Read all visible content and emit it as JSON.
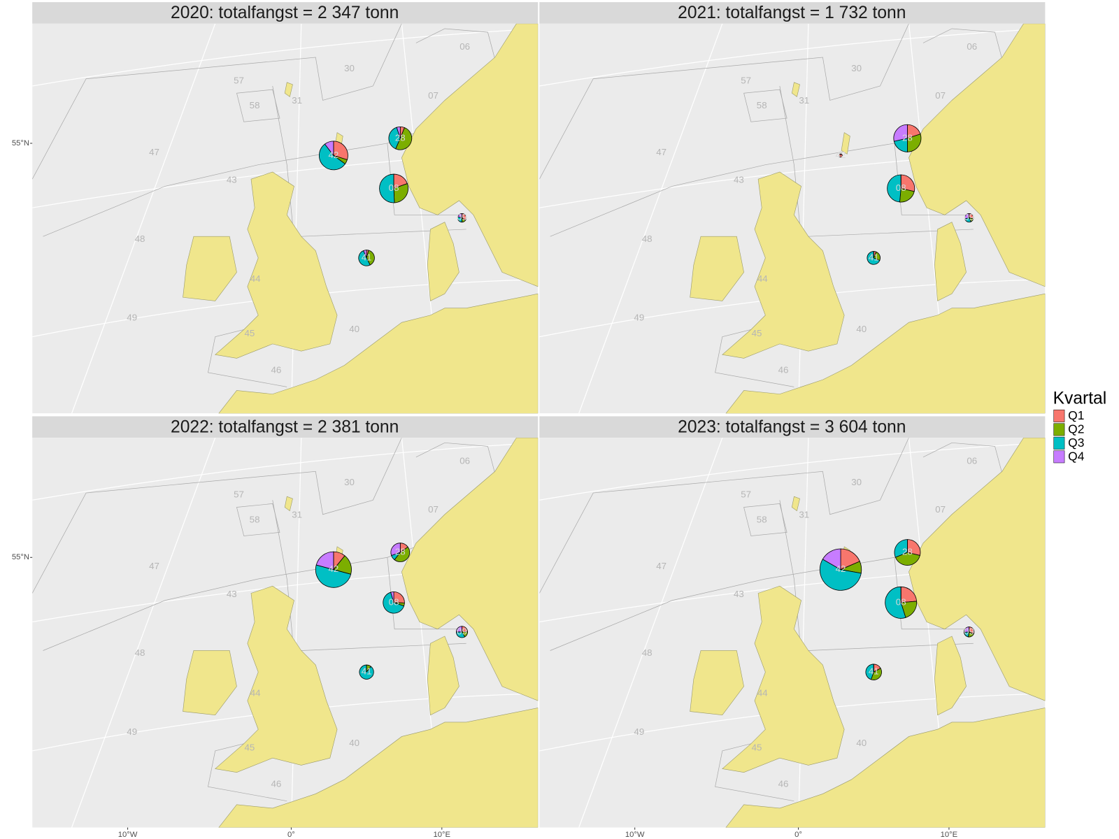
{
  "legend": {
    "title": "Kvartal",
    "items": [
      {
        "label": "Q1",
        "color": "#F8766D"
      },
      {
        "label": "Q2",
        "color": "#7CAE00"
      },
      {
        "label": "Q3",
        "color": "#00BFC4"
      },
      {
        "label": "Q4",
        "color": "#C77CFF"
      }
    ]
  },
  "axes": {
    "y_label": "55°N",
    "x_labels": [
      "10°W",
      "0°",
      "10°E"
    ]
  },
  "area_labels": [
    "06",
    "30",
    "57",
    "31",
    "58",
    "07",
    "47",
    "43",
    "48",
    "44",
    "49",
    "45",
    "40",
    "46"
  ],
  "panels": [
    {
      "title": "2020: totalfangst = 2 347 tonn",
      "pies": [
        {
          "area": "42",
          "values": [
            230,
            40,
            420,
            80
          ]
        },
        {
          "area": "28",
          "values": [
            30,
            250,
            190,
            25
          ]
        },
        {
          "area": "08",
          "values": [
            150,
            230,
            390,
            0
          ]
        },
        {
          "area": "09",
          "values": [
            25,
            10,
            20,
            15
          ]
        },
        {
          "area": "41",
          "values": [
            10,
            90,
            120,
            15
          ]
        }
      ]
    },
    {
      "title": "2021: totalfangst = 1 732 tonn",
      "pies": [
        {
          "area": "42",
          "values": [
            10,
            0,
            0,
            0
          ]
        },
        {
          "area": "28",
          "values": [
            140,
            210,
            150,
            200
          ]
        },
        {
          "area": "08",
          "values": [
            200,
            160,
            340,
            0
          ]
        },
        {
          "area": "09",
          "values": [
            20,
            10,
            20,
            20
          ]
        },
        {
          "area": "41",
          "values": [
            10,
            40,
            110,
            0
          ]
        }
      ]
    },
    {
      "title": "2022: totalfangst = 2 381 tonn",
      "pies": [
        {
          "area": "42",
          "values": [
            130,
            220,
            600,
            250
          ]
        },
        {
          "area": "28",
          "values": [
            50,
            150,
            30,
            100
          ]
        },
        {
          "area": "08",
          "values": [
            110,
            20,
            280,
            20
          ]
        },
        {
          "area": "09",
          "values": [
            30,
            20,
            40,
            30
          ]
        },
        {
          "area": "41",
          "values": [
            0,
            20,
            170,
            0
          ]
        }
      ]
    },
    {
      "title": "2023: totalfangst = 3 604 tonn",
      "pies": [
        {
          "area": "42",
          "values": [
            300,
            150,
            900,
            270
          ]
        },
        {
          "area": "28",
          "values": [
            180,
            250,
            195,
            0
          ]
        },
        {
          "area": "08",
          "values": [
            220,
            200,
            510,
            0
          ]
        },
        {
          "area": "09",
          "values": [
            30,
            20,
            20,
            25
          ]
        },
        {
          "area": "41",
          "values": [
            40,
            90,
            105,
            0
          ]
        }
      ]
    }
  ]
}
